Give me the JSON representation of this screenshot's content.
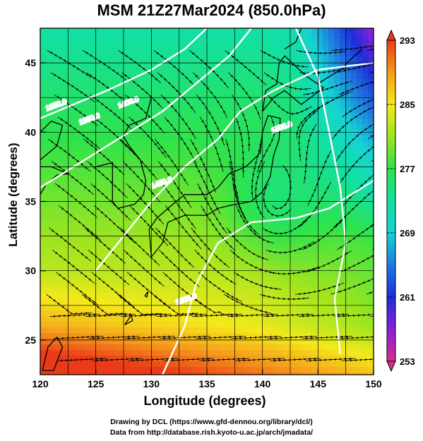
{
  "figure": {
    "title": "MSM 21Z27Mar2024 (850.0hPa)",
    "xlabel": "Longitude (degrees)",
    "ylabel": "Latitude  (degrees)",
    "credit_line1": "Drawing by DCL (https://www.gfd-dennou.org/library/dcl/)",
    "credit_line2": "Data from http://database.rish.kyoto-u.ac.jp/arch/jmadata/"
  },
  "map": {
    "lon_range": [
      120,
      150
    ],
    "lat_range": [
      22.5,
      47.5
    ],
    "lon_ticks": [
      120,
      125,
      130,
      135,
      140,
      145,
      150
    ],
    "lat_ticks": [
      25,
      30,
      35,
      40,
      45
    ],
    "grid": true,
    "field": "temperature (shaded) with wind streamlines",
    "contour_labels": [
      "1350.0",
      "1350.0",
      "1400.0",
      "1450.0",
      "1500.0",
      "1500.0"
    ],
    "cyclone_center": {
      "lon": 141,
      "lat": 34.5
    }
  },
  "colorbar": {
    "min": 253,
    "max": 293,
    "tick_labels": [
      "293",
      "285",
      "277",
      "269",
      "261",
      "253"
    ],
    "colors": [
      "#d52f8a",
      "#8a1fd8",
      "#1a2fd8",
      "#1f7ae0",
      "#16d3d3",
      "#12e0a0",
      "#2ee34a",
      "#9ee51f",
      "#f4ea1b",
      "#f59a1b",
      "#ea3a18"
    ]
  }
}
